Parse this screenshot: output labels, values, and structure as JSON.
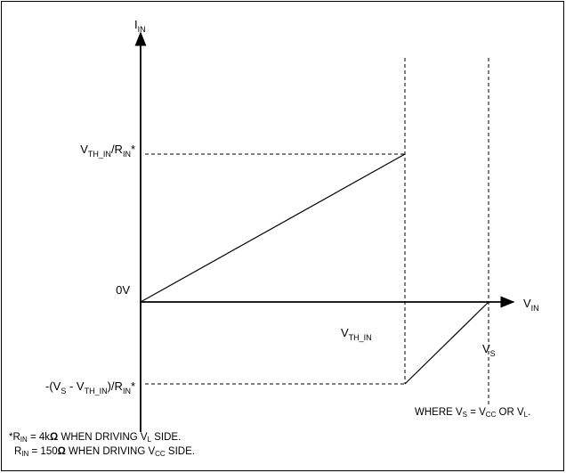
{
  "axes": {
    "y_label": "I",
    "y_label_sub": "IN",
    "x_label": "V",
    "x_label_sub": "IN"
  },
  "tick_labels": {
    "top_pre": "V",
    "top_sub1": "TH_IN",
    "top_mid": "/R",
    "top_sub2": "IN",
    "top_post": "*",
    "zero": "0V",
    "bottom_pre": "-(V",
    "bottom_sub1": "S",
    "bottom_mid1": " - V",
    "bottom_sub2": "TH_IN",
    "bottom_mid2": ")/R",
    "bottom_sub3": "IN",
    "bottom_post": "*"
  },
  "point_labels": {
    "vth_pre": "V",
    "vth_sub": "TH_IN",
    "vs_pre": "V",
    "vs_sub": "S"
  },
  "notes": {
    "where_pre": "WHERE V",
    "where_sub1": "S",
    "where_mid": " = V",
    "where_sub2": "CC",
    "where_mid2": " OR V",
    "where_sub3": "L",
    "where_post": ".",
    "foot1_pre": "*R",
    "foot1_sub1": "IN",
    "foot1_mid": " = 4k",
    "foot1_omega": "Ω",
    "foot1_mid2": " WHEN DRIVING V",
    "foot1_sub2": "L",
    "foot1_post": " SIDE.",
    "foot2_pre": "R",
    "foot2_sub1": "IN",
    "foot2_mid": " = 150",
    "foot2_omega": "Ω",
    "foot2_mid2": " WHEN DRIVING V",
    "foot2_sub2": "CC",
    "foot2_post": " SIDE."
  }
}
